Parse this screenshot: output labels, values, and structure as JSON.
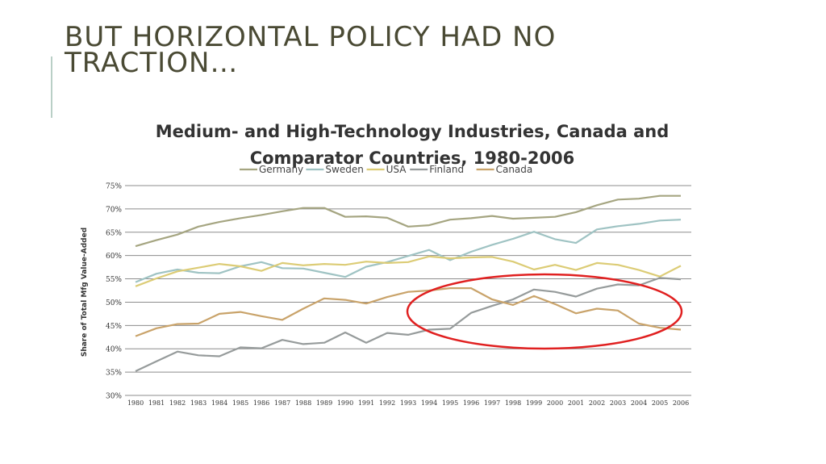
{
  "slide": {
    "title_lines": [
      "BUT HORIZONTAL POLICY HAD NO",
      "TRACTION…"
    ]
  },
  "chart_data": {
    "type": "line",
    "title_lines": [
      "Medium- and High-Technology Industries, Canada and",
      "Comparator Countries, 1980-2006"
    ],
    "xlabel": "",
    "ylabel": "Share of Total Mfg Value-Added",
    "ylim": [
      0.3,
      0.75
    ],
    "yticks": [
      0.3,
      0.35,
      0.4,
      0.45,
      0.5,
      0.55,
      0.6,
      0.65,
      0.7,
      0.75
    ],
    "ytick_labels": [
      "30%",
      "35%",
      "40%",
      "45%",
      "50%",
      "55%",
      "60%",
      "65%",
      "70%",
      "75%"
    ],
    "x": [
      "1980",
      "1981",
      "1982",
      "1983",
      "1984",
      "1985",
      "1986",
      "1987",
      "1988",
      "1989",
      "1990",
      "1991",
      "1992",
      "1993",
      "1994",
      "1995",
      "1996",
      "1997",
      "1998",
      "1999",
      "2000",
      "2001",
      "2002",
      "2003",
      "2004",
      "2005",
      "2006"
    ],
    "grid": true,
    "legend_position": "top",
    "series": [
      {
        "name": "Germany",
        "color": "#a5a581",
        "values": [
          0.62,
          0.633,
          0.645,
          0.662,
          0.672,
          0.68,
          0.687,
          0.695,
          0.702,
          0.702,
          0.683,
          0.684,
          0.681,
          0.662,
          0.665,
          0.677,
          0.68,
          0.685,
          0.679,
          0.681,
          0.683,
          0.693,
          0.708,
          0.72,
          0.722,
          0.728,
          0.728
        ]
      },
      {
        "name": "Sweden",
        "color": "#9fc3c3",
        "values": [
          0.543,
          0.561,
          0.57,
          0.563,
          0.562,
          0.577,
          0.586,
          0.573,
          0.572,
          0.563,
          0.554,
          0.576,
          0.586,
          0.599,
          0.612,
          0.59,
          0.608,
          0.623,
          0.636,
          0.651,
          0.635,
          0.627,
          0.656,
          0.663,
          0.668,
          0.675,
          0.677
        ]
      },
      {
        "name": "USA",
        "color": "#dccc76",
        "values": [
          0.534,
          0.551,
          0.566,
          0.574,
          0.582,
          0.577,
          0.567,
          0.584,
          0.579,
          0.582,
          0.58,
          0.587,
          0.584,
          0.586,
          0.598,
          0.594,
          0.596,
          0.597,
          0.587,
          0.57,
          0.58,
          0.569,
          0.584,
          0.58,
          0.569,
          0.555,
          0.578
        ]
      },
      {
        "name": "Finland",
        "color": "#969b9b",
        "values": [
          0.352,
          0.373,
          0.394,
          0.386,
          0.384,
          0.403,
          0.401,
          0.419,
          0.41,
          0.413,
          0.435,
          0.413,
          0.434,
          0.43,
          0.441,
          0.443,
          0.477,
          0.492,
          0.506,
          0.527,
          0.522,
          0.512,
          0.529,
          0.538,
          0.536,
          0.552,
          0.549
        ]
      },
      {
        "name": "Canada",
        "color": "#c9a36a",
        "values": [
          0.427,
          0.444,
          0.453,
          0.454,
          0.475,
          0.479,
          0.47,
          0.462,
          0.486,
          0.508,
          0.505,
          0.497,
          0.511,
          0.522,
          0.525,
          0.53,
          0.53,
          0.506,
          0.494,
          0.513,
          0.496,
          0.476,
          0.486,
          0.482,
          0.454,
          0.445,
          0.441
        ]
      }
    ],
    "annotations": [
      {
        "type": "ellipse",
        "color": "#e02020",
        "x_center": 1999.5,
        "y_center": 0.48
      }
    ]
  }
}
